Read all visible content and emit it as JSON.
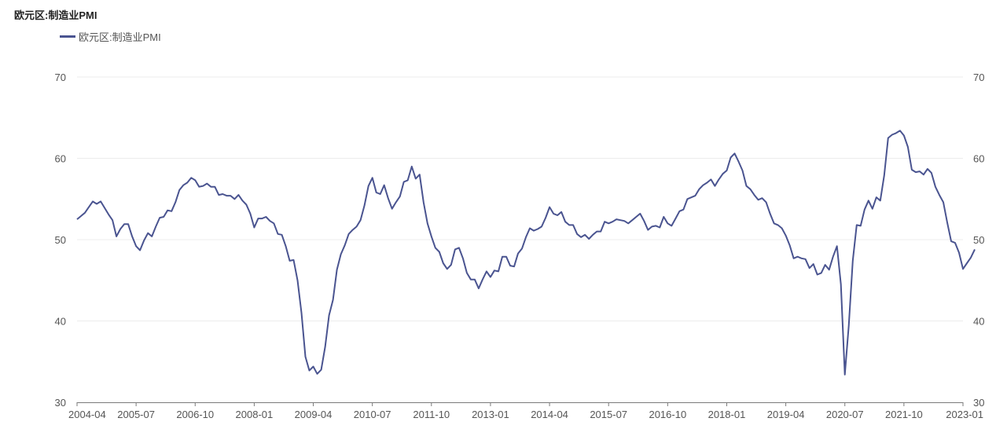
{
  "chart_data": {
    "type": "line",
    "title": "欧元区:制造业PMI",
    "legend_position": "top-left",
    "grid": true,
    "ylim": [
      30,
      70
    ],
    "y_ticks": [
      30,
      40,
      50,
      60,
      70
    ],
    "y_tick_labels_left": [
      "70",
      "60",
      "50",
      "40",
      "30"
    ],
    "y_tick_labels_right": [
      "70",
      "60",
      "50",
      "40",
      "30"
    ],
    "x_tick_labels": [
      "2004-04",
      "2005-07",
      "2006-10",
      "2008-01",
      "2009-04",
      "2010-07",
      "2011-10",
      "2013-01",
      "2014-04",
      "2015-07",
      "2016-10",
      "2018-01",
      "2019-04",
      "2020-07",
      "2021-10",
      "2023-01"
    ],
    "x_range": [
      "2004-04",
      "2023-01"
    ],
    "series": [
      {
        "name": "欧元区:制造业PMI",
        "color": "#4a5490",
        "values": [
          52.5,
          52.9,
          53.3,
          54.0,
          54.7,
          54.4,
          54.7,
          53.9,
          53.1,
          52.4,
          50.4,
          51.3,
          51.9,
          51.9,
          50.4,
          49.2,
          48.7,
          49.9,
          50.8,
          50.4,
          51.6,
          52.7,
          52.8,
          53.6,
          53.5,
          54.6,
          56.1,
          56.7,
          57.0,
          57.6,
          57.3,
          56.5,
          56.6,
          56.9,
          56.5,
          56.5,
          55.5,
          55.6,
          55.4,
          55.4,
          55.0,
          55.5,
          54.8,
          54.3,
          53.2,
          51.5,
          52.6,
          52.6,
          52.8,
          52.3,
          52.0,
          50.7,
          50.6,
          49.2,
          47.4,
          47.5,
          45.0,
          41.0,
          35.6,
          33.9,
          34.4,
          33.5,
          34.0,
          36.8,
          40.7,
          42.6,
          46.3,
          48.2,
          49.3,
          50.7,
          51.2,
          51.6,
          52.4,
          54.2,
          56.6,
          57.6,
          55.8,
          55.6,
          56.7,
          55.1,
          53.8,
          54.6,
          55.3,
          57.1,
          57.3,
          59.0,
          57.5,
          58.0,
          54.6,
          52.0,
          50.4,
          49.0,
          48.5,
          47.1,
          46.4,
          46.9,
          48.8,
          49.0,
          47.7,
          45.9,
          45.1,
          45.1,
          44.0,
          45.1,
          46.1,
          45.4,
          46.2,
          46.1,
          47.9,
          47.9,
          46.8,
          46.7,
          48.3,
          48.9,
          50.3,
          51.4,
          51.1,
          51.3,
          51.6,
          52.7,
          54.0,
          53.2,
          53.0,
          53.4,
          52.2,
          51.8,
          51.8,
          50.7,
          50.3,
          50.6,
          50.1,
          50.6,
          51.0,
          51.0,
          52.2,
          52.0,
          52.2,
          52.5,
          52.4,
          52.3,
          52.0,
          52.4,
          52.8,
          53.2,
          52.3,
          51.2,
          51.6,
          51.7,
          51.5,
          52.8,
          52.0,
          51.7,
          52.6,
          53.5,
          53.7,
          55.0,
          55.2,
          55.4,
          56.2,
          56.7,
          57.0,
          57.4,
          56.6,
          57.4,
          58.1,
          58.5,
          60.1,
          60.6,
          59.6,
          58.5,
          56.6,
          56.2,
          55.5,
          54.9,
          55.1,
          54.6,
          53.2,
          52.0,
          51.8,
          51.4,
          50.5,
          49.3,
          47.7,
          47.9,
          47.7,
          47.6,
          46.5,
          47.0,
          45.7,
          45.9,
          46.9,
          46.3,
          47.9,
          49.2,
          44.5,
          33.4,
          39.4,
          47.4,
          51.8,
          51.7,
          53.7,
          54.8,
          53.8,
          55.2,
          54.8,
          57.9,
          62.5,
          62.9,
          63.1,
          63.4,
          62.8,
          61.4,
          58.6,
          58.3,
          58.4,
          58.0,
          58.7,
          58.2,
          56.5,
          55.5,
          54.6,
          52.1,
          49.8,
          49.6,
          48.4,
          46.4,
          47.1,
          47.8,
          48.8
        ]
      }
    ]
  }
}
